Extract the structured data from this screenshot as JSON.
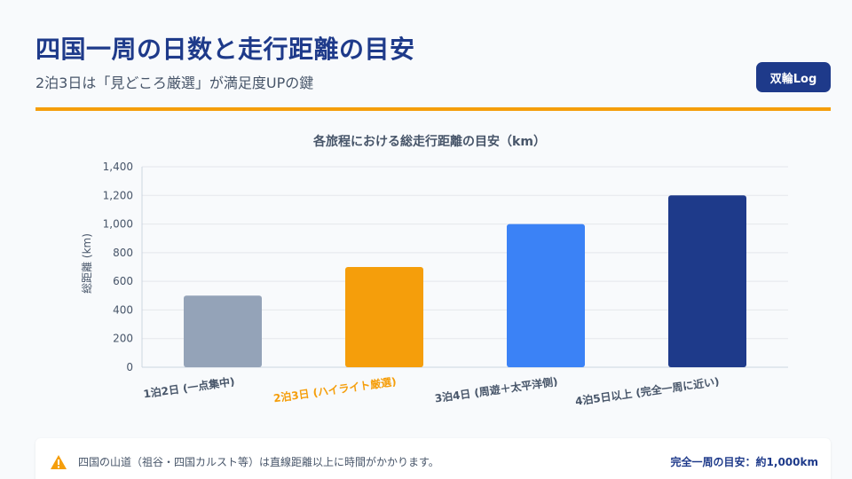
{
  "header": {
    "title": "四国一周の日数と走行距離の目安",
    "subtitle": "2泊3日は「見どころ厳選」が満足度UPの鍵",
    "brand": "双輪Log"
  },
  "colors": {
    "accent": "#f59e0b",
    "brand": "#1e3a8a"
  },
  "chart_data": {
    "type": "bar",
    "title": "各旅程における総走行距離の目安（km）",
    "xlabel": "",
    "ylabel": "総距離 (km)",
    "categories": [
      "1泊2日 (一点集中)",
      "2泊3日 (ハイライト厳選)",
      "3泊4日 (周遊＋太平洋側)",
      "4泊5日以上 (完全一周に近い)"
    ],
    "values": [
      500,
      700,
      1000,
      1200
    ],
    "bar_colors": [
      "#94a3b8",
      "#f59e0b",
      "#3b82f6",
      "#1e3a8a"
    ],
    "highlight_category_index": 1,
    "ylim": [
      0,
      1400
    ],
    "yticks": [
      "0",
      "200",
      "400",
      "600",
      "800",
      "1,000",
      "1,200",
      "1,400"
    ],
    "grid": true,
    "legend": "none"
  },
  "footer": {
    "note": "四国の山道（祖谷・四国カルスト等）は直線距離以上に時間がかかります。",
    "summary": "完全一周の目安：約1,000km"
  }
}
